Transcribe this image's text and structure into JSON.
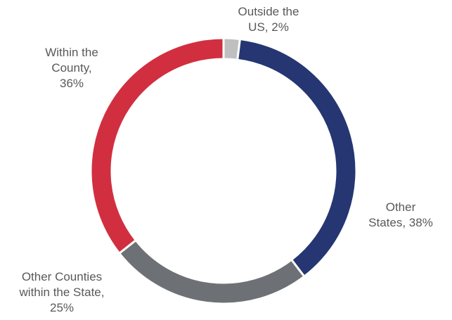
{
  "chart_data": {
    "type": "pie",
    "variant": "donut",
    "title": "",
    "categories": [
      "Outside the US",
      "Other States",
      "Other Counties within the State",
      "Within the County"
    ],
    "values": [
      2,
      38,
      25,
      36
    ],
    "colors": [
      "#bfbfbf",
      "#253672",
      "#6d7175",
      "#d12f3f"
    ],
    "data_labels": [
      [
        "Outside the",
        "US, 2%"
      ],
      [
        "Other",
        "States, 38%"
      ],
      [
        "Other Counties",
        "within the State,",
        "25%"
      ],
      [
        "Within the",
        "County,",
        "36%"
      ]
    ],
    "legend": "none",
    "start_angle": "12 o'clock",
    "direction": "clockwise"
  }
}
